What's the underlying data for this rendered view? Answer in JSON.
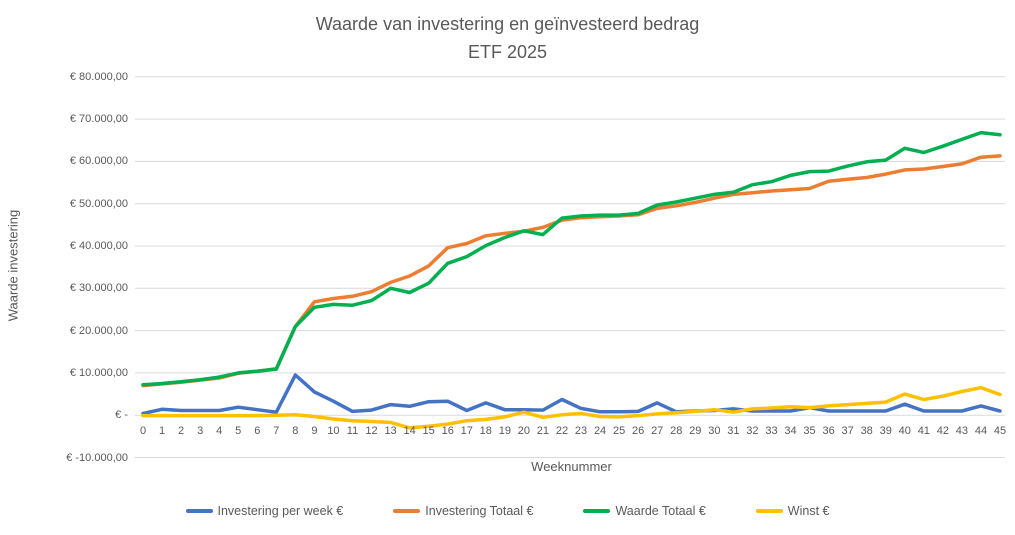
{
  "chart": {
    "title_line1": "Waarde van investering en geïnvesteerd bedrag",
    "title_line2": "ETF 2025",
    "x_axis_title": "Weeknummer",
    "y_axis_title": "Waarde investering"
  },
  "chart_data": {
    "type": "line",
    "title": "Waarde van investering en geïnvesteerd bedrag ETF 2025",
    "xlabel": "Weeknummer",
    "ylabel": "Waarde investering",
    "x": [
      0,
      1,
      2,
      3,
      4,
      5,
      6,
      7,
      8,
      9,
      10,
      11,
      12,
      13,
      14,
      15,
      16,
      17,
      18,
      19,
      20,
      21,
      22,
      23,
      24,
      25,
      26,
      27,
      28,
      29,
      30,
      31,
      32,
      33,
      34,
      35,
      36,
      37,
      38,
      39,
      40,
      41,
      42,
      43,
      44,
      45
    ],
    "ylim": [
      -10000,
      80000
    ],
    "ytick_step": 10000,
    "ytick_labels": [
      "€ 80.000,00",
      "€ 70.000,00",
      "€ 60.000,00",
      "€ 50.000,00",
      "€ 40.000,00",
      "€ 30.000,00",
      "€ 20.000,00",
      "€ 10.000,00",
      "€ -",
      "€ -10.000,00"
    ],
    "grid": "horizontal",
    "legend_position": "bottom",
    "gridline_color": "#d9d9d9",
    "series": [
      {
        "name": "Investering per week €",
        "color": "#4472c4",
        "values": [
          400,
          1400,
          1100,
          1100,
          1100,
          1900,
          1300,
          700,
          9500,
          5500,
          3300,
          900,
          1200,
          2500,
          2100,
          3200,
          3300,
          1100,
          2900,
          1300,
          1300,
          1200,
          3700,
          1600,
          800,
          800,
          900,
          2900,
          800,
          1000,
          1100,
          1500,
          1000,
          1000,
          1000,
          1800,
          1000,
          1000,
          1000,
          1000,
          2600,
          1000,
          1000,
          1000,
          2200,
          1000
        ]
      },
      {
        "name": "Investering Totaal €",
        "color": "#ed7d31",
        "values": [
          7000,
          7400,
          7800,
          8300,
          8800,
          9900,
          10400,
          11000,
          21000,
          26800,
          27600,
          28100,
          29200,
          31400,
          32900,
          35300,
          39600,
          40600,
          42400,
          43000,
          43500,
          44400,
          46100,
          46700,
          46900,
          47100,
          47400,
          48900,
          49500,
          50300,
          51300,
          52200,
          52600,
          53000,
          53300,
          53600,
          55300,
          55800,
          56200,
          57000,
          58000,
          58200,
          58800,
          59400,
          61000,
          61300
        ]
      },
      {
        "name": "Waarde Totaal €",
        "color": "#00b050",
        "values": [
          7200,
          7500,
          7900,
          8400,
          9000,
          10000,
          10400,
          10900,
          21000,
          25500,
          26200,
          26000,
          27100,
          30000,
          29000,
          31200,
          35900,
          37500,
          40100,
          42000,
          43600,
          42700,
          46600,
          47100,
          47300,
          47300,
          47700,
          49700,
          50400,
          51300,
          52200,
          52700,
          54500,
          55200,
          56700,
          57600,
          57700,
          58900,
          59900,
          60300,
          63100,
          62100,
          63600,
          65200,
          66800,
          66300
        ]
      },
      {
        "name": "Winst €",
        "color": "#ffc000",
        "values": [
          -100,
          -100,
          -100,
          -100,
          -100,
          -100,
          -100,
          0,
          100,
          -300,
          -900,
          -1300,
          -1500,
          -1700,
          -3000,
          -2600,
          -2100,
          -1300,
          -1000,
          -400,
          700,
          -500,
          100,
          400,
          -300,
          -400,
          -100,
          300,
          600,
          900,
          1300,
          700,
          1500,
          1700,
          2000,
          1800,
          2200,
          2500,
          2800,
          3100,
          5000,
          3700,
          4500,
          5600,
          6500,
          4900
        ]
      }
    ]
  }
}
